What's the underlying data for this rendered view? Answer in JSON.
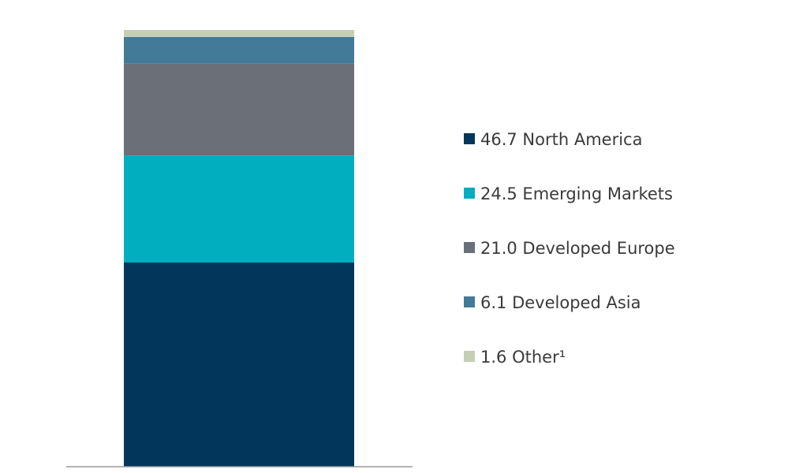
{
  "chart_data": {
    "type": "bar",
    "stacked": true,
    "title": "",
    "xlabel": "",
    "ylabel": "",
    "ylim": [
      0,
      100
    ],
    "categories": [
      ""
    ],
    "series": [
      {
        "name": "North America",
        "value": 46.7,
        "color": "#02365b",
        "label": "46.7 North America"
      },
      {
        "name": "Emerging Markets",
        "value": 24.5,
        "color": "#00aebf",
        "label": "24.5 Emerging Markets"
      },
      {
        "name": "Developed Europe",
        "value": 21.0,
        "color": "#6a6f78",
        "label": "21.0 Developed Europe"
      },
      {
        "name": "Developed Asia",
        "value": 6.1,
        "color": "#427a98",
        "label": "6.1 Developed Asia"
      },
      {
        "name": "Other",
        "value": 1.6,
        "color": "#c5cfb4",
        "label": "1.6 Other¹"
      }
    ],
    "legend_position": "right",
    "grid": false
  }
}
